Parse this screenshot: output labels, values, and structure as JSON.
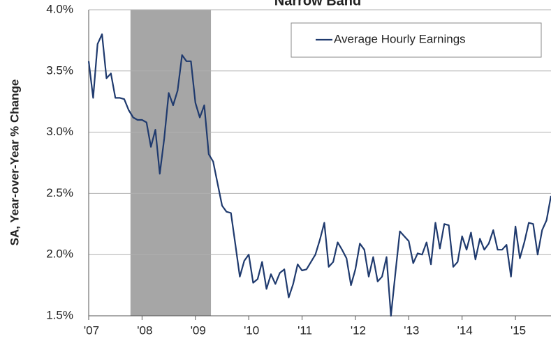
{
  "chart_data": {
    "type": "line",
    "title": "Narrow Band",
    "y_label": "SA, Year-over-Year % Change",
    "categories": [
      "'07",
      null,
      null,
      null,
      null,
      null,
      null,
      null,
      null,
      null,
      null,
      null,
      "'08",
      null,
      null,
      null,
      null,
      null,
      null,
      null,
      null,
      null,
      null,
      null,
      "'09",
      null,
      null,
      null,
      null,
      null,
      null,
      null,
      null,
      null,
      null,
      null,
      "'10",
      null,
      null,
      null,
      null,
      null,
      null,
      null,
      null,
      null,
      null,
      null,
      "'11",
      null,
      null,
      null,
      null,
      null,
      null,
      null,
      null,
      null,
      null,
      null,
      "'12",
      null,
      null,
      null,
      null,
      null,
      null,
      null,
      null,
      null,
      null,
      null,
      "'13",
      null,
      null,
      null,
      null,
      null,
      null,
      null,
      null,
      null,
      null,
      null,
      "'14",
      null,
      null,
      null,
      null,
      null,
      null,
      null,
      null,
      null,
      null,
      null,
      "'15",
      null,
      null,
      null,
      null,
      null,
      null,
      null,
      null
    ],
    "series": [
      {
        "name": "Average Hourly Earnings",
        "color": "#1f3a6e",
        "values": [
          3.58,
          3.28,
          3.72,
          3.8,
          3.44,
          3.48,
          3.28,
          3.28,
          3.27,
          3.18,
          3.12,
          3.1,
          3.1,
          3.08,
          2.88,
          3.02,
          2.66,
          2.95,
          3.32,
          3.22,
          3.34,
          3.63,
          3.58,
          3.58,
          3.24,
          3.12,
          3.22,
          2.82,
          2.76,
          2.58,
          2.4,
          2.35,
          2.34,
          2.08,
          1.82,
          1.95,
          2.0,
          1.77,
          1.8,
          1.94,
          1.72,
          1.84,
          1.76,
          1.85,
          1.88,
          1.65,
          1.76,
          1.92,
          1.87,
          1.88,
          1.94,
          2.0,
          2.12,
          2.26,
          1.9,
          1.94,
          2.1,
          2.04,
          1.97,
          1.75,
          1.88,
          2.09,
          2.04,
          1.82,
          1.98,
          1.78,
          1.82,
          1.98,
          1.5,
          1.85,
          2.19,
          2.15,
          2.11,
          1.93,
          2.01,
          2.0,
          2.1,
          1.92,
          2.26,
          2.05,
          2.25,
          2.24,
          1.9,
          1.94,
          2.15,
          2.04,
          2.18,
          1.96,
          2.13,
          2.04,
          2.09,
          2.2,
          2.04,
          2.04,
          2.08,
          1.82,
          2.23,
          1.97,
          2.1,
          2.26,
          2.25,
          2.0,
          2.2,
          2.28,
          2.48
        ]
      }
    ],
    "ylim": [
      1.5,
      4.0
    ],
    "yticks": [
      {
        "value": 1.5,
        "label": "1.5%"
      },
      {
        "value": 2.0,
        "label": "2.0%"
      },
      {
        "value": 2.5,
        "label": "2.5%"
      },
      {
        "value": 3.0,
        "label": "3.0%"
      },
      {
        "value": 3.5,
        "label": "3.5%"
      },
      {
        "value": 4.0,
        "label": "4.0%"
      }
    ],
    "recession": [
      9.4,
      27.5
    ],
    "recession_color": "#a6a6a6",
    "grid": true,
    "legend": "top-right"
  }
}
